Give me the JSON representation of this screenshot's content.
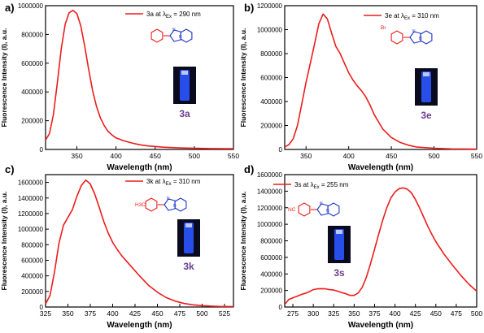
{
  "colors": {
    "curve": "#ee1c1c",
    "axis": "#000000",
    "molecule_core": "#1f35c8",
    "compound_label": "#6b3f8c",
    "cuvette_glow": "#2a55ff",
    "cuvette_bg": "#0a0a1e"
  },
  "chart_data": [
    {
      "type": "line",
      "panel_label": "a)",
      "legend": {
        "text": "3a at λ",
        "sub": "Ex",
        "tail": " = 290 nm",
        "placement": "top-right"
      },
      "compound_label": "3a",
      "substituent": "",
      "xlabel": "Wavelength (nm)",
      "ylabel": "Fluorescence Intensity (I), a.u.",
      "xlim": [
        310,
        550
      ],
      "ylim": [
        0,
        1000000
      ],
      "x_ticks": [
        350,
        400,
        450,
        500,
        550
      ],
      "y_ticks": [
        0,
        200000,
        400000,
        600000,
        800000,
        1000000
      ],
      "series": [
        {
          "x": [
            310,
            315,
            320,
            325,
            330,
            335,
            340,
            345,
            350,
            355,
            360,
            365,
            370,
            375,
            380,
            385,
            390,
            395,
            400,
            410,
            420,
            430,
            440,
            460,
            480,
            500,
            520,
            540,
            550
          ],
          "y": [
            65000,
            110000,
            240000,
            460000,
            700000,
            870000,
            950000,
            968000,
            945000,
            860000,
            720000,
            560000,
            410000,
            300000,
            220000,
            165000,
            125000,
            100000,
            80000,
            60000,
            45000,
            33000,
            25000,
            16000,
            11000,
            8000,
            6000,
            5000,
            5000
          ]
        }
      ]
    },
    {
      "type": "line",
      "panel_label": "b)",
      "legend": {
        "text": "3e at λ",
        "sub": "Ex",
        "tail": " = 310 nm",
        "placement": "top-right"
      },
      "compound_label": "3e",
      "substituent": "Br",
      "xlabel": "Wavelength (nm)",
      "ylabel": "Fluorescence Intensity (I), a.u.",
      "xlim": [
        325,
        550
      ],
      "ylim": [
        0,
        1200000
      ],
      "x_ticks": [
        350,
        400,
        450,
        500,
        550
      ],
      "y_ticks": [
        0,
        200000,
        400000,
        600000,
        800000,
        1000000,
        1200000
      ],
      "series": [
        {
          "x": [
            325,
            330,
            335,
            340,
            345,
            350,
            355,
            360,
            365,
            370,
            375,
            380,
            385,
            390,
            395,
            400,
            405,
            410,
            415,
            420,
            425,
            430,
            440,
            450,
            460,
            470,
            480,
            500,
            520,
            550
          ],
          "y": [
            20000,
            40000,
            90000,
            200000,
            380000,
            560000,
            720000,
            880000,
            1050000,
            1130000,
            1090000,
            970000,
            860000,
            800000,
            720000,
            640000,
            580000,
            530000,
            490000,
            440000,
            370000,
            290000,
            170000,
            100000,
            60000,
            35000,
            20000,
            10000,
            5000,
            3000
          ]
        }
      ]
    },
    {
      "type": "line",
      "panel_label": "c)",
      "legend": {
        "text": "3k at λ",
        "sub": "Ex",
        "tail": " = 310 nm",
        "placement": "top-right"
      },
      "compound_label": "3k",
      "substituent": "H3C",
      "xlabel": "Wavelength (nm)",
      "ylabel": "Fluorescence Intensity (I), a.u.",
      "xlim": [
        325,
        535
      ],
      "ylim": [
        0,
        1700000
      ],
      "x_ticks": [
        325,
        350,
        375,
        400,
        425,
        450,
        475,
        500,
        525
      ],
      "y_ticks": [
        0,
        200000,
        400000,
        600000,
        800000,
        1000000,
        1200000,
        1400000,
        1600000
      ],
      "series": [
        {
          "x": [
            325,
            330,
            335,
            340,
            345,
            350,
            355,
            360,
            365,
            370,
            375,
            380,
            385,
            390,
            395,
            400,
            405,
            410,
            420,
            430,
            440,
            450,
            460,
            470,
            480,
            490,
            500,
            510,
            520,
            535
          ],
          "y": [
            40000,
            150000,
            450000,
            820000,
            1050000,
            1150000,
            1250000,
            1420000,
            1560000,
            1630000,
            1580000,
            1450000,
            1280000,
            1100000,
            950000,
            830000,
            740000,
            660000,
            530000,
            400000,
            280000,
            190000,
            120000,
            75000,
            45000,
            28000,
            18000,
            11000,
            7000,
            5000
          ]
        }
      ]
    },
    {
      "type": "line",
      "panel_label": "d)",
      "legend": {
        "text": "3s at λ",
        "sub": "Ex",
        "tail": " = 255 nm",
        "placement": "top-left"
      },
      "compound_label": "3s",
      "substituent": "NC",
      "xlabel": "Wavelength (nm)",
      "ylabel": "Fluorescence Intensity (I), a.u.",
      "xlim": [
        265,
        500
      ],
      "ylim": [
        0,
        1600000
      ],
      "x_ticks": [
        275,
        300,
        325,
        350,
        375,
        400,
        425,
        450,
        475,
        500
      ],
      "y_ticks": [
        0,
        200000,
        400000,
        600000,
        800000,
        1000000,
        1200000,
        1400000,
        1600000
      ],
      "series": [
        {
          "x": [
            265,
            270,
            275,
            280,
            285,
            290,
            295,
            300,
            305,
            310,
            315,
            320,
            325,
            330,
            335,
            340,
            345,
            350,
            355,
            360,
            365,
            370,
            375,
            380,
            385,
            390,
            395,
            400,
            405,
            410,
            415,
            420,
            425,
            430,
            435,
            440,
            445,
            450,
            460,
            470,
            480,
            490,
            500
          ],
          "y": [
            30000,
            90000,
            110000,
            130000,
            150000,
            165000,
            185000,
            210000,
            220000,
            222000,
            220000,
            210000,
            205000,
            190000,
            175000,
            160000,
            140000,
            140000,
            170000,
            240000,
            360000,
            520000,
            700000,
            880000,
            1050000,
            1200000,
            1320000,
            1390000,
            1430000,
            1440000,
            1425000,
            1380000,
            1300000,
            1200000,
            1090000,
            980000,
            880000,
            790000,
            640000,
            510000,
            390000,
            280000,
            190000
          ]
        }
      ]
    }
  ]
}
